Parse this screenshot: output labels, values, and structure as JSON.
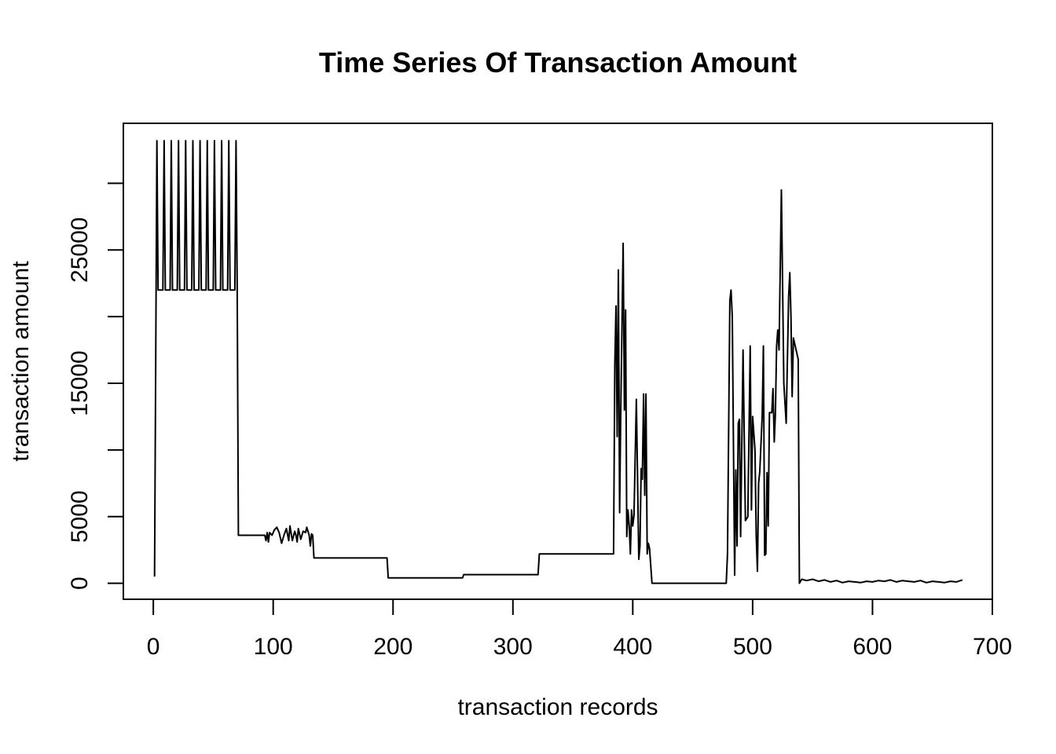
{
  "chart_data": {
    "type": "line",
    "title": "Time Series Of Transaction Amount",
    "xlabel": "transaction records",
    "ylabel": "transaction amount",
    "xlim": [
      -25,
      700
    ],
    "ylim": [
      -1200,
      34500
    ],
    "x_ticks": [
      0,
      100,
      200,
      300,
      400,
      500,
      600,
      700
    ],
    "x_tick_labels": [
      "0",
      "100",
      "200",
      "300",
      "400",
      "500",
      "600",
      "700"
    ],
    "y_ticks": [
      0,
      5000,
      10000,
      15000,
      20000,
      25000,
      30000
    ],
    "y_tick_labels": [
      "0",
      "5000",
      "",
      "15000",
      "",
      "25000",
      ""
    ],
    "grid": false,
    "legend": "none",
    "line_color": "#000000",
    "series": [
      {
        "points": [
          [
            1,
            500
          ],
          [
            3,
            33200
          ],
          [
            4,
            22000
          ],
          [
            8,
            22000
          ],
          [
            9,
            33200
          ],
          [
            10,
            22000
          ],
          [
            14,
            22000
          ],
          [
            15,
            33200
          ],
          [
            16,
            22000
          ],
          [
            20,
            22000
          ],
          [
            21,
            33200
          ],
          [
            22,
            22000
          ],
          [
            26,
            22000
          ],
          [
            27,
            33200
          ],
          [
            28,
            22000
          ],
          [
            32,
            22000
          ],
          [
            33,
            33200
          ],
          [
            34,
            22000
          ],
          [
            38,
            22000
          ],
          [
            39,
            33200
          ],
          [
            40,
            22000
          ],
          [
            44,
            22000
          ],
          [
            45,
            33200
          ],
          [
            46,
            22000
          ],
          [
            50,
            22000
          ],
          [
            51,
            33200
          ],
          [
            52,
            22000
          ],
          [
            56,
            22000
          ],
          [
            57,
            33200
          ],
          [
            58,
            22000
          ],
          [
            62,
            22000
          ],
          [
            63,
            33200
          ],
          [
            64,
            22000
          ],
          [
            68,
            22000
          ],
          [
            69,
            33200
          ],
          [
            70,
            22000
          ],
          [
            71,
            3600
          ],
          [
            93,
            3600
          ],
          [
            94,
            3200
          ],
          [
            95,
            3800
          ],
          [
            96,
            3100
          ],
          [
            97,
            3800
          ],
          [
            99,
            3600
          ],
          [
            101,
            4000
          ],
          [
            103,
            4200
          ],
          [
            105,
            3800
          ],
          [
            107,
            3000
          ],
          [
            109,
            3600
          ],
          [
            111,
            4100
          ],
          [
            113,
            3200
          ],
          [
            114,
            4300
          ],
          [
            116,
            3200
          ],
          [
            118,
            3900
          ],
          [
            119,
            3600
          ],
          [
            120,
            3100
          ],
          [
            121,
            4100
          ],
          [
            123,
            3300
          ],
          [
            125,
            3900
          ],
          [
            127,
            3800
          ],
          [
            128,
            4200
          ],
          [
            130,
            3600
          ],
          [
            131,
            2800
          ],
          [
            132,
            3700
          ],
          [
            133,
            3600
          ],
          [
            134,
            1900
          ],
          [
            195,
            1900
          ],
          [
            196,
            400
          ],
          [
            258,
            400
          ],
          [
            259,
            650
          ],
          [
            321,
            650
          ],
          [
            322,
            2200
          ],
          [
            384,
            2200
          ],
          [
            385,
            16500
          ],
          [
            386,
            20800
          ],
          [
            387,
            11000
          ],
          [
            388,
            23500
          ],
          [
            389,
            5300
          ],
          [
            390,
            13000
          ],
          [
            392,
            25500
          ],
          [
            393,
            13000
          ],
          [
            394,
            20500
          ],
          [
            395,
            3500
          ],
          [
            396,
            5500
          ],
          [
            397,
            4300
          ],
          [
            398,
            2200
          ],
          [
            399,
            5500
          ],
          [
            400,
            4300
          ],
          [
            401,
            5100
          ],
          [
            403,
            13800
          ],
          [
            405,
            1800
          ],
          [
            406,
            2800
          ],
          [
            407,
            8600
          ],
          [
            408,
            7800
          ],
          [
            409,
            14200
          ],
          [
            410,
            6600
          ],
          [
            411,
            14200
          ],
          [
            412,
            2200
          ],
          [
            413,
            3000
          ],
          [
            414,
            2600
          ],
          [
            416,
            0
          ],
          [
            478,
            0
          ],
          [
            479,
            2200
          ],
          [
            481,
            21200
          ],
          [
            482,
            22000
          ],
          [
            483,
            20000
          ],
          [
            485,
            600
          ],
          [
            486,
            8500
          ],
          [
            487,
            2800
          ],
          [
            488,
            12000
          ],
          [
            489,
            12300
          ],
          [
            490,
            3500
          ],
          [
            492,
            17500
          ],
          [
            494,
            4700
          ],
          [
            496,
            5000
          ],
          [
            498,
            17800
          ],
          [
            499,
            5500
          ],
          [
            500,
            12500
          ],
          [
            502,
            10000
          ],
          [
            503,
            3500
          ],
          [
            504,
            900
          ],
          [
            505,
            7500
          ],
          [
            506,
            8400
          ],
          [
            508,
            12600
          ],
          [
            509,
            17800
          ],
          [
            510,
            2100
          ],
          [
            511,
            2200
          ],
          [
            512,
            8300
          ],
          [
            513,
            4300
          ],
          [
            514,
            12800
          ],
          [
            516,
            12800
          ],
          [
            517,
            14600
          ],
          [
            518,
            10600
          ],
          [
            519,
            12800
          ],
          [
            520,
            17800
          ],
          [
            521,
            19000
          ],
          [
            522,
            17500
          ],
          [
            524,
            29500
          ],
          [
            526,
            15000
          ],
          [
            528,
            12000
          ],
          [
            530,
            21500
          ],
          [
            531,
            23300
          ],
          [
            532,
            20000
          ],
          [
            533,
            14000
          ],
          [
            534,
            18400
          ],
          [
            536,
            17600
          ],
          [
            538,
            16800
          ],
          [
            539,
            0
          ],
          [
            541,
            300
          ],
          [
            545,
            200
          ],
          [
            550,
            300
          ],
          [
            555,
            150
          ],
          [
            560,
            250
          ],
          [
            565,
            100
          ],
          [
            570,
            200
          ],
          [
            575,
            50
          ],
          [
            580,
            150
          ],
          [
            585,
            100
          ],
          [
            590,
            50
          ],
          [
            595,
            150
          ],
          [
            600,
            100
          ],
          [
            605,
            200
          ],
          [
            610,
            150
          ],
          [
            615,
            250
          ],
          [
            620,
            100
          ],
          [
            625,
            200
          ],
          [
            630,
            150
          ],
          [
            635,
            100
          ],
          [
            640,
            200
          ],
          [
            645,
            50
          ],
          [
            650,
            150
          ],
          [
            655,
            100
          ],
          [
            660,
            50
          ],
          [
            665,
            150
          ],
          [
            670,
            100
          ],
          [
            675,
            250
          ]
        ]
      }
    ]
  }
}
